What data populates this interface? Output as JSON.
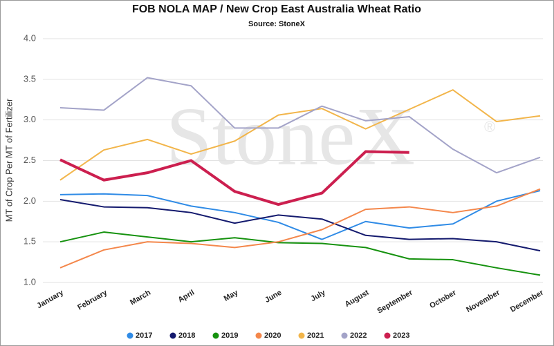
{
  "chart_data": {
    "type": "line",
    "title": "FOB NOLA MAP / New Crop East Australia Wheat Ratio",
    "subtitle": "Source: StoneX",
    "watermark": "StoneX",
    "y_label": "MT of Crop Per MT of Fertilizer",
    "categories": [
      "January",
      "February",
      "March",
      "April",
      "May",
      "June",
      "July",
      "August",
      "September",
      "October",
      "November",
      "December"
    ],
    "series": [
      {
        "name": "2017",
        "color": "#2f8be6",
        "values": [
          2.08,
          2.09,
          2.07,
          1.94,
          1.86,
          1.74,
          1.53,
          1.75,
          1.67,
          1.72,
          2.0,
          2.13
        ]
      },
      {
        "name": "2018",
        "color": "#141a6e",
        "values": [
          2.02,
          1.93,
          1.92,
          1.86,
          1.73,
          1.83,
          1.78,
          1.58,
          1.53,
          1.54,
          1.5,
          1.39
        ]
      },
      {
        "name": "2019",
        "color": "#16920f",
        "values": [
          1.5,
          1.62,
          1.56,
          1.5,
          1.55,
          1.49,
          1.48,
          1.43,
          1.29,
          1.28,
          1.18,
          1.09
        ]
      },
      {
        "name": "2020",
        "color": "#f4874b",
        "values": [
          1.18,
          1.4,
          1.5,
          1.48,
          1.43,
          1.5,
          1.65,
          1.9,
          1.93,
          1.86,
          1.94,
          2.15
        ]
      },
      {
        "name": "2021",
        "color": "#f2b54a",
        "values": [
          2.26,
          2.63,
          2.76,
          2.58,
          2.74,
          3.06,
          3.14,
          2.89,
          3.13,
          3.37,
          2.98,
          3.05
        ]
      },
      {
        "name": "2022",
        "color": "#a3a3c8",
        "values": [
          3.15,
          3.12,
          3.52,
          3.42,
          2.9,
          2.9,
          3.17,
          2.99,
          3.04,
          2.64,
          2.35,
          2.54
        ]
      },
      {
        "name": "2023",
        "color": "#cc1f4f",
        "values": [
          2.51,
          2.26,
          2.35,
          2.5,
          2.12,
          1.96,
          2.1,
          2.61,
          2.6,
          null,
          null,
          null
        ]
      }
    ],
    "ylim": [
      1,
      4
    ],
    "yticks": [
      {
        "value": 1,
        "label": "1.0"
      },
      1.5,
      {
        "value": 2,
        "label": "2.0"
      },
      2.5,
      {
        "value": 3,
        "label": "3.0"
      },
      3.5,
      {
        "value": 4,
        "label": "4.0"
      }
    ],
    "grid": true,
    "legend": "bottom"
  }
}
